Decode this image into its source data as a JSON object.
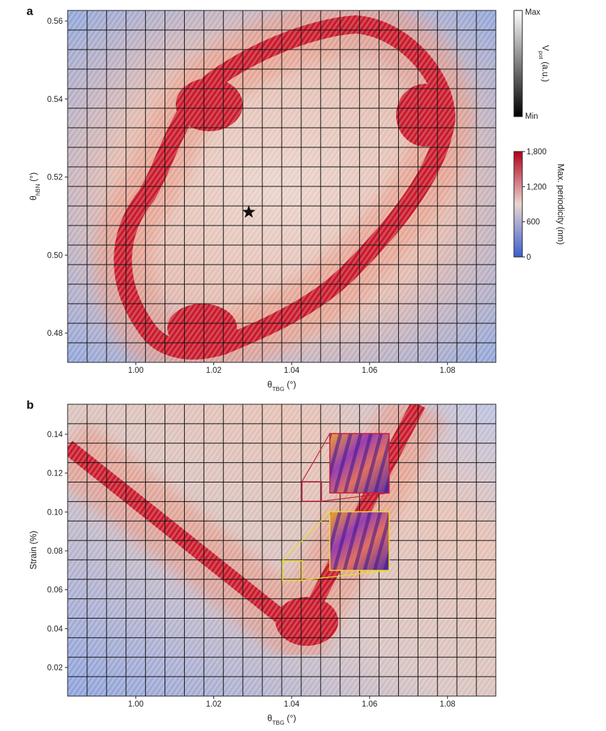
{
  "chart_data": [
    {
      "type": "heatmap",
      "panel": "a",
      "xlabel": [
        "θ",
        "TBG",
        " (°)"
      ],
      "ylabel": [
        "θ",
        "hBN",
        " (°)"
      ],
      "xlim": [
        0.9825,
        1.0924
      ],
      "ylim": [
        0.4725,
        0.5627
      ],
      "xticks": [
        {
          "value": 1.0,
          "label": "1.00"
        },
        1.02,
        1.04,
        1.06,
        1.08
      ],
      "yticks": [
        0.48,
        {
          "value": 0.5,
          "label": "0.50"
        },
        0.52,
        0.54,
        0.56
      ],
      "star": {
        "x": 1.029,
        "y": 0.511
      },
      "colorbars": [
        {
          "label": [
            "V",
            "pot",
            " (a.u.)"
          ],
          "ticks": [
            "Max",
            "Min"
          ],
          "colors": [
            "#ffffff",
            "#000000"
          ]
        },
        {
          "label": "Max. periodicity (nm)",
          "lim": [
            0,
            1800
          ],
          "ticks": [
            0,
            600,
            {
              "value": 1200,
              "label": "1,200"
            },
            {
              "value": 1800,
              "label": "1,800"
            }
          ],
          "colors": [
            "#3b5fd0",
            "#e9d6cf",
            "#b3001b"
          ]
        }
      ]
    },
    {
      "type": "heatmap",
      "panel": "b",
      "xlabel": [
        "θ",
        "TBG",
        " (°)"
      ],
      "ylabel": "Strain (%)",
      "xlim": [
        0.9825,
        1.0924
      ],
      "ylim": [
        0.0053,
        0.1554
      ],
      "xticks": [
        {
          "value": 1.0,
          "label": "1.00"
        },
        1.02,
        1.04,
        1.06,
        1.08
      ],
      "yticks": [
        0.02,
        0.04,
        0.06,
        0.08,
        {
          "value": 0.1,
          "label": "0.10"
        },
        0.12,
        0.14
      ]
    }
  ]
}
